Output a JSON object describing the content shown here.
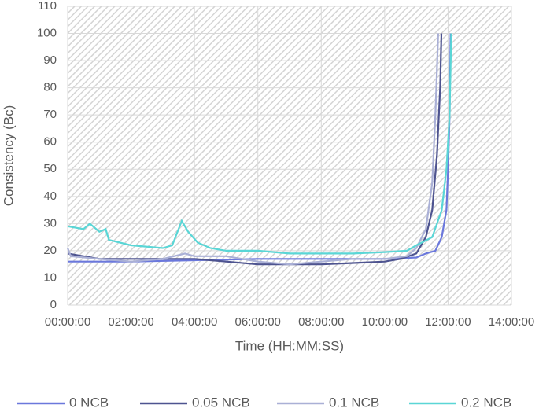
{
  "chart_data": {
    "type": "line",
    "x_label": "Time (HH:MM:SS)",
    "y_label": "Consistency (Bc)",
    "xlim": [
      0,
      14
    ],
    "xticks": [
      {
        "value": 0,
        "label": "00:00:00"
      },
      {
        "value": 2,
        "label": "02:00:00"
      },
      {
        "value": 4,
        "label": "04:00:00"
      },
      {
        "value": 6,
        "label": "06:00:00"
      },
      {
        "value": 8,
        "label": "08:00:00"
      },
      {
        "value": 10,
        "label": "10:00:00"
      },
      {
        "value": 12,
        "label": "12:00:00"
      },
      {
        "value": 14,
        "label": "14:00:00"
      }
    ],
    "ylim": [
      0,
      110
    ],
    "yticks": [
      0,
      10,
      20,
      30,
      40,
      50,
      60,
      70,
      80,
      90,
      100,
      110
    ],
    "grid": true,
    "legend": "bottom",
    "series": [
      {
        "name": "0 NCB",
        "color": "#6b78dc",
        "x": [
          0,
          2,
          4,
          6,
          8,
          10,
          11,
          11.3,
          11.6,
          11.8,
          11.95,
          12.0,
          12.05,
          12.08
        ],
        "values": [
          16,
          16,
          16.5,
          17,
          17,
          17,
          17.5,
          19,
          20,
          25,
          35,
          50,
          70,
          100
        ]
      },
      {
        "name": "0.05 NCB",
        "color": "#4e5490",
        "x": [
          0,
          0.5,
          1,
          2,
          3,
          4,
          5,
          6,
          7,
          8,
          9,
          10,
          10.5,
          11,
          11.3,
          11.5,
          11.65,
          11.75,
          11.79
        ],
        "values": [
          19,
          18,
          17,
          17,
          17,
          17,
          16,
          15,
          15,
          15,
          15.5,
          16,
          17,
          19,
          25,
          35,
          55,
          80,
          100
        ]
      },
      {
        "name": "0.1 NCB",
        "color": "#aab0d6",
        "x": [
          0,
          0.1,
          1,
          2,
          3,
          3.7,
          4,
          5,
          6,
          7,
          8,
          9,
          10,
          10.7,
          11,
          11.3,
          11.5,
          11.6,
          11.69
        ],
        "values": [
          21,
          18,
          17,
          16,
          17,
          19,
          18,
          18,
          16,
          15,
          16,
          17,
          17,
          18,
          21,
          28,
          45,
          70,
          100
        ]
      },
      {
        "name": "0.2 NCB",
        "color": "#5ad6d6",
        "x": [
          0,
          0.5,
          0.7,
          1,
          1.2,
          1.3,
          2,
          3,
          3.3,
          3.6,
          3.8,
          4.1,
          4.5,
          5,
          6,
          7,
          8,
          9,
          10,
          10.7,
          11,
          11.5,
          11.8,
          11.95,
          12.05,
          12.1
        ],
        "values": [
          29,
          28,
          30,
          27,
          28,
          24,
          22,
          21,
          22,
          31,
          27,
          23,
          21,
          20,
          20,
          19,
          19,
          19,
          19.5,
          20,
          22,
          25,
          35,
          50,
          70,
          100
        ]
      }
    ]
  }
}
